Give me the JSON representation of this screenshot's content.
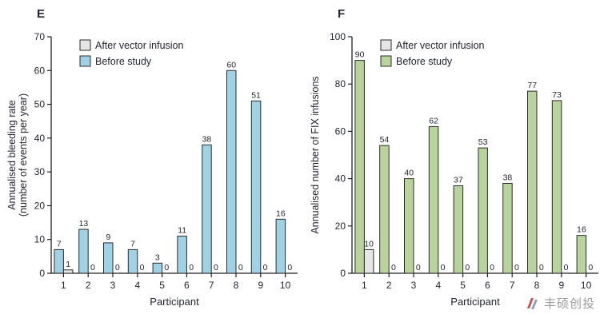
{
  "watermark": {
    "text": "丰硕创投"
  },
  "colors": {
    "axis": "#231f20",
    "text": "#232633",
    "bar_stroke": "#2b2b2b"
  },
  "chart_data": [
    {
      "panel": "E",
      "type": "bar",
      "categories": [
        "1",
        "2",
        "3",
        "4",
        "5",
        "6",
        "7",
        "8",
        "9",
        "10"
      ],
      "series": [
        {
          "name": "After vector infusion",
          "color": "#e6e6e4",
          "values": [
            1,
            0,
            0,
            0,
            0,
            0,
            0,
            0,
            0,
            0
          ]
        },
        {
          "name": "Before study",
          "color": "#9ed2e4",
          "values": [
            7,
            13,
            9,
            7,
            3,
            11,
            38,
            60,
            51,
            16
          ]
        }
      ],
      "bar_order": [
        "Before study",
        "After vector infusion"
      ],
      "legend": [
        "After vector infusion",
        "Before study"
      ],
      "legend_position": "top-left",
      "xlabel": "Participant",
      "ylabel_lines": [
        "Annualised bleeding rate",
        "(number of events per year)"
      ],
      "ylim": [
        0,
        70
      ],
      "yticks": [
        0,
        10,
        20,
        30,
        40,
        50,
        60,
        70
      ],
      "grid": false
    },
    {
      "panel": "F",
      "type": "bar",
      "categories": [
        "1",
        "2",
        "3",
        "4",
        "5",
        "6",
        "7",
        "8",
        "9",
        "10"
      ],
      "series": [
        {
          "name": "After vector infusion",
          "color": "#e6e6e4",
          "values": [
            10,
            0,
            0,
            0,
            0,
            0,
            0,
            0,
            0,
            0
          ]
        },
        {
          "name": "Before study",
          "color": "#b8d49c",
          "values": [
            90,
            54,
            40,
            62,
            37,
            53,
            38,
            77,
            73,
            16
          ]
        }
      ],
      "bar_order": [
        "Before study",
        "After vector infusion"
      ],
      "legend": [
        "After vector infusion",
        "Before study"
      ],
      "legend_position": "top-left",
      "xlabel": "Participant",
      "ylabel_lines": [
        "Annualised number of FIX infusions"
      ],
      "ylim": [
        0,
        100
      ],
      "yticks": [
        0,
        20,
        40,
        60,
        80,
        100
      ],
      "grid": false
    }
  ]
}
